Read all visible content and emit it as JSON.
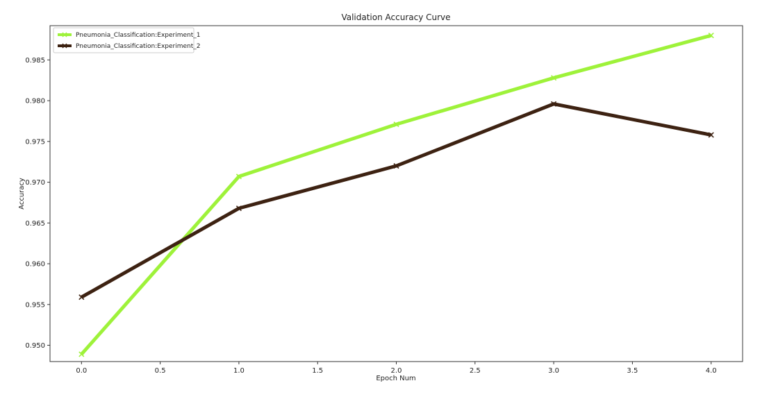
{
  "chart_data": {
    "type": "line",
    "title": "Validation Accuracy Curve",
    "xlabel": "Epoch Num",
    "ylabel": "Accuracy",
    "x": [
      0,
      1,
      2,
      3,
      4
    ],
    "xlim": [
      -0.2,
      4.2
    ],
    "ylim": [
      0.948,
      0.9892
    ],
    "xticks": [
      0.0,
      0.5,
      1.0,
      1.5,
      2.0,
      2.5,
      3.0,
      3.5,
      4.0
    ],
    "xtick_labels": [
      "0.0",
      "0.5",
      "1.0",
      "1.5",
      "2.0",
      "2.5",
      "3.0",
      "3.5",
      "4.0"
    ],
    "yticks": [
      0.95,
      0.955,
      0.96,
      0.965,
      0.97,
      0.975,
      0.98,
      0.985
    ],
    "ytick_labels": [
      "0.950",
      "0.955",
      "0.960",
      "0.965",
      "0.970",
      "0.975",
      "0.980",
      "0.985"
    ],
    "grid": false,
    "legend_position": "top-left",
    "series": [
      {
        "name": "Pneumonia_Classification:Experiment_1",
        "values": [
          0.9489,
          0.9707,
          0.9771,
          0.9828,
          0.988
        ],
        "color": "#9ef23a",
        "marker": "x"
      },
      {
        "name": "Pneumonia_Classification:Experiment_2",
        "values": [
          0.9559,
          0.9668,
          0.972,
          0.9796,
          0.9758
        ],
        "color": "#3d2212",
        "marker": "x"
      }
    ]
  }
}
